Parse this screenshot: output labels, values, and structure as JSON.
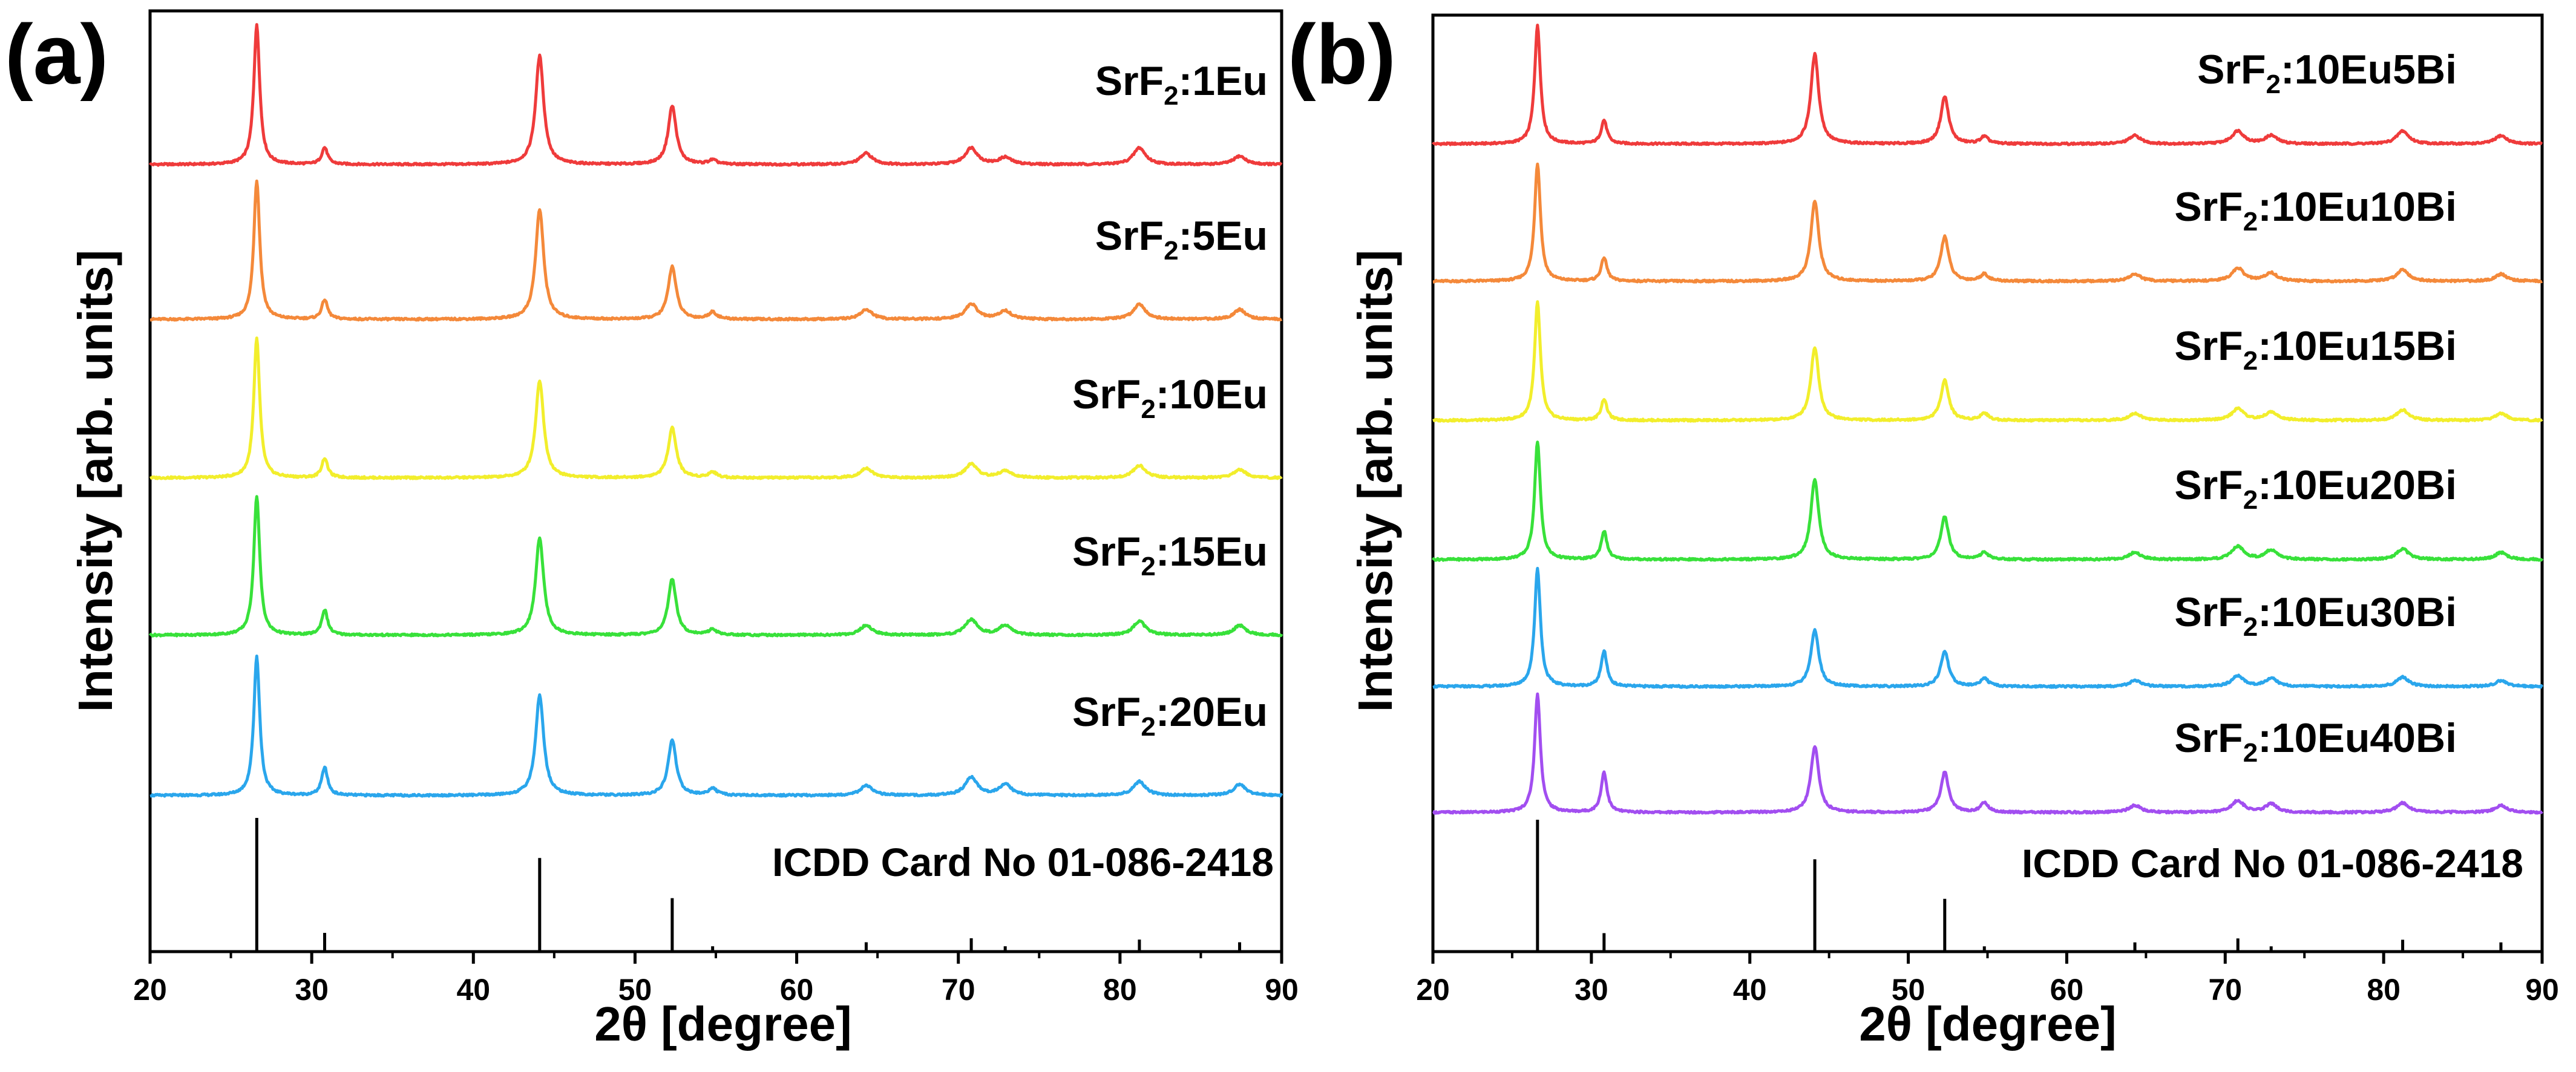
{
  "chart_data": [
    {
      "type": "line",
      "panel_label": "(a)",
      "xlabel": "2θ [degree]",
      "ylabel": "Intensity [arb. units]",
      "xlim": [
        20,
        90
      ],
      "xticks": [
        20,
        30,
        40,
        50,
        60,
        70,
        80,
        90
      ],
      "y_ticks_shown": false,
      "series": [
        {
          "name": "SrF2:1Eu",
          "label_main": "SrF",
          "label_sub": "2",
          "label_rest": ":1Eu",
          "color": "#ef3b3b",
          "peaks": [
            [
              26.6,
              100
            ],
            [
              30.8,
              12
            ],
            [
              44.1,
              78
            ],
            [
              52.3,
              42
            ],
            [
              54.8,
              3
            ],
            [
              64.3,
              8
            ],
            [
              70.8,
              12
            ],
            [
              72.9,
              5
            ],
            [
              81.2,
              12
            ],
            [
              87.4,
              6
            ]
          ]
        },
        {
          "name": "SrF2:5Eu",
          "label_main": "SrF",
          "label_sub": "2",
          "label_rest": ":5Eu",
          "color": "#f4893a",
          "peaks": [
            [
              26.6,
              100
            ],
            [
              30.8,
              14
            ],
            [
              44.1,
              79
            ],
            [
              52.3,
              38
            ],
            [
              54.8,
              5
            ],
            [
              64.3,
              7
            ],
            [
              70.8,
              11
            ],
            [
              72.9,
              6
            ],
            [
              81.2,
              11
            ],
            [
              87.4,
              7
            ]
          ]
        },
        {
          "name": "SrF2:10Eu",
          "label_main": "SrF",
          "label_sub": "2",
          "label_rest": ":10Eu",
          "color": "#f2ee2c",
          "peaks": [
            [
              26.6,
              100
            ],
            [
              30.8,
              14
            ],
            [
              44.1,
              70
            ],
            [
              52.3,
              36
            ],
            [
              54.8,
              4
            ],
            [
              64.3,
              7
            ],
            [
              70.8,
              10
            ],
            [
              72.9,
              5
            ],
            [
              81.2,
              9
            ],
            [
              87.4,
              6
            ]
          ]
        },
        {
          "name": "SrF2:15Eu",
          "label_main": "SrF",
          "label_sub": "2",
          "label_rest": ":15Eu",
          "color": "#38e13a",
          "peaks": [
            [
              26.6,
              100
            ],
            [
              30.8,
              18
            ],
            [
              44.1,
              70
            ],
            [
              52.3,
              40
            ],
            [
              54.8,
              4
            ],
            [
              64.3,
              7
            ],
            [
              70.8,
              11
            ],
            [
              72.9,
              7
            ],
            [
              81.2,
              10
            ],
            [
              87.4,
              7
            ]
          ]
        },
        {
          "name": "SrF2:20Eu",
          "label_main": "SrF",
          "label_sub": "2",
          "label_rest": ":20Eu",
          "color": "#2aa6ec",
          "peaks": [
            [
              26.6,
              100
            ],
            [
              30.8,
              20
            ],
            [
              44.1,
              72
            ],
            [
              52.3,
              40
            ],
            [
              54.8,
              5
            ],
            [
              64.3,
              7
            ],
            [
              70.8,
              13
            ],
            [
              72.9,
              8
            ],
            [
              81.2,
              10
            ],
            [
              87.4,
              8
            ]
          ]
        }
      ],
      "reference": {
        "label": "ICDD Card No 01-086-2418",
        "lines": [
          [
            26.6,
            100
          ],
          [
            30.8,
            14
          ],
          [
            44.1,
            70
          ],
          [
            52.3,
            40
          ],
          [
            54.8,
            4
          ],
          [
            64.3,
            7
          ],
          [
            70.8,
            10
          ],
          [
            72.9,
            4
          ],
          [
            81.2,
            9
          ],
          [
            87.4,
            7
          ]
        ]
      }
    },
    {
      "type": "line",
      "panel_label": "(b)",
      "xlabel": "2θ [degree]",
      "ylabel": "Intensity [arb. units]",
      "xlim": [
        20,
        90
      ],
      "xticks": [
        20,
        30,
        40,
        50,
        60,
        70,
        80,
        90
      ],
      "y_ticks_shown": false,
      "series": [
        {
          "name": "SrF2:10Eu5Bi",
          "label_main": "SrF",
          "label_sub": "2",
          "label_rest": ":10Eu5Bi",
          "color": "#ef3b3b",
          "peaks": [
            [
              26.6,
              100
            ],
            [
              30.8,
              20
            ],
            [
              44.1,
              76
            ],
            [
              52.3,
              40
            ],
            [
              54.8,
              6
            ],
            [
              64.3,
              7
            ],
            [
              70.8,
              11
            ],
            [
              72.9,
              7
            ],
            [
              81.2,
              11
            ],
            [
              87.4,
              7
            ]
          ]
        },
        {
          "name": "SrF2:10Eu10Bi",
          "label_main": "SrF",
          "label_sub": "2",
          "label_rest": ":10Eu10Bi",
          "color": "#f4893a",
          "peaks": [
            [
              26.6,
              100
            ],
            [
              30.8,
              20
            ],
            [
              44.1,
              68
            ],
            [
              52.3,
              38
            ],
            [
              54.8,
              6
            ],
            [
              64.3,
              6
            ],
            [
              70.8,
              11
            ],
            [
              72.9,
              7
            ],
            [
              81.2,
              10
            ],
            [
              87.4,
              6
            ]
          ]
        },
        {
          "name": "SrF2:10Eu15Bi",
          "label_main": "SrF",
          "label_sub": "2",
          "label_rest": ":10Eu15Bi",
          "color": "#f2ee2c",
          "peaks": [
            [
              26.6,
              100
            ],
            [
              30.8,
              18
            ],
            [
              44.1,
              62
            ],
            [
              52.3,
              34
            ],
            [
              54.8,
              6
            ],
            [
              64.3,
              6
            ],
            [
              70.8,
              10
            ],
            [
              72.9,
              7
            ],
            [
              81.2,
              9
            ],
            [
              87.4,
              6
            ]
          ]
        },
        {
          "name": "SrF2:10Eu20Bi",
          "label_main": "SrF",
          "label_sub": "2",
          "label_rest": ":10Eu20Bi",
          "color": "#38e13a",
          "peaks": [
            [
              26.6,
              100
            ],
            [
              30.8,
              24
            ],
            [
              44.1,
              68
            ],
            [
              52.3,
              36
            ],
            [
              54.8,
              6
            ],
            [
              64.3,
              6
            ],
            [
              70.8,
              11
            ],
            [
              72.9,
              8
            ],
            [
              81.2,
              9
            ],
            [
              87.4,
              6
            ]
          ]
        },
        {
          "name": "SrF2:10Eu30Bi",
          "label_main": "SrF",
          "label_sub": "2",
          "label_rest": ":10Eu30Bi",
          "color": "#2aa6ec",
          "peaks": [
            [
              26.6,
              100
            ],
            [
              30.8,
              30
            ],
            [
              44.1,
              48
            ],
            [
              52.3,
              30
            ],
            [
              54.8,
              7
            ],
            [
              64.3,
              5
            ],
            [
              70.8,
              9
            ],
            [
              72.9,
              7
            ],
            [
              81.2,
              8
            ],
            [
              87.4,
              5
            ]
          ]
        },
        {
          "name": "SrF2:10Eu40Bi",
          "label_main": "SrF",
          "label_sub": "2",
          "label_rest": ":10Eu40Bi",
          "color": "#a24ef0",
          "peaks": [
            [
              26.6,
              100
            ],
            [
              30.8,
              34
            ],
            [
              44.1,
              56
            ],
            [
              52.3,
              34
            ],
            [
              54.8,
              8
            ],
            [
              64.3,
              6
            ],
            [
              70.8,
              10
            ],
            [
              72.9,
              7
            ],
            [
              81.2,
              8
            ],
            [
              87.4,
              6
            ]
          ]
        }
      ],
      "reference": {
        "label": "ICDD Card No 01-086-2418",
        "lines": [
          [
            26.6,
            100
          ],
          [
            30.8,
            14
          ],
          [
            44.1,
            70
          ],
          [
            52.3,
            40
          ],
          [
            54.8,
            4
          ],
          [
            64.3,
            7
          ],
          [
            70.8,
            10
          ],
          [
            72.9,
            4
          ],
          [
            81.2,
            9
          ],
          [
            87.4,
            7
          ]
        ]
      }
    }
  ]
}
